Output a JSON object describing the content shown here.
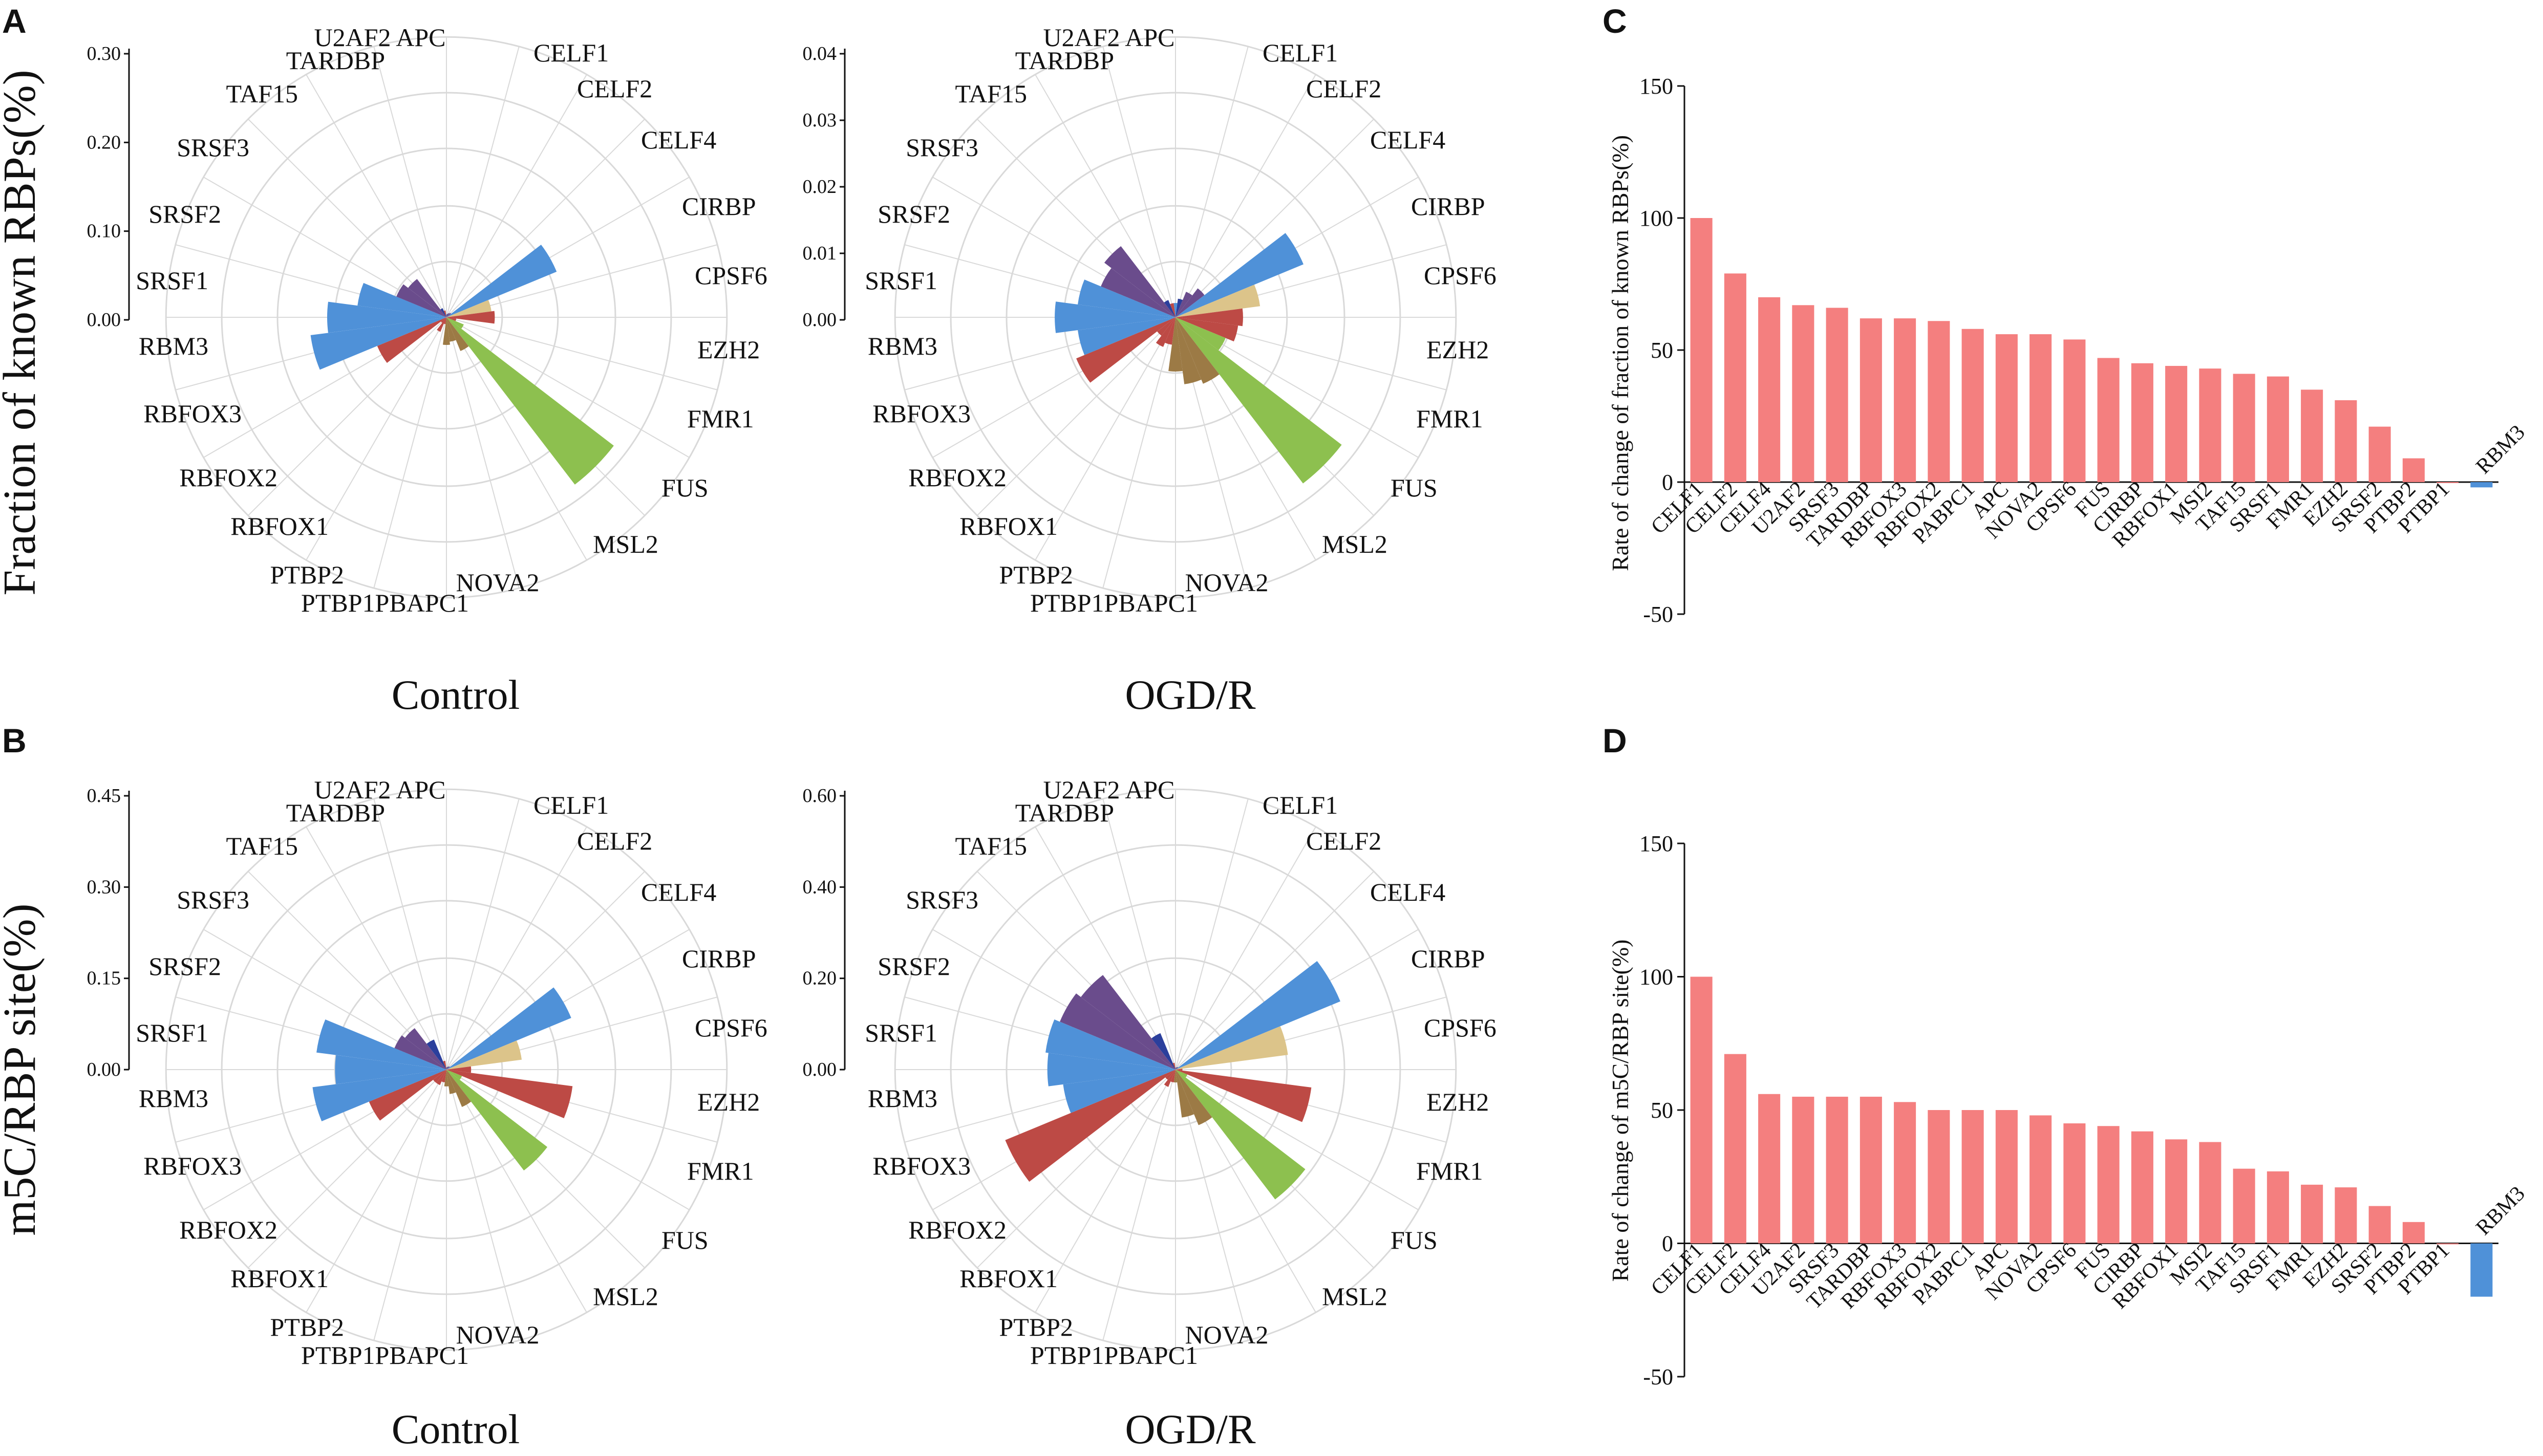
{
  "panel_labels": [
    "A",
    "B",
    "C",
    "D"
  ],
  "colors": {
    "purple": "#6a4c8c",
    "blue": "#4f91d8",
    "dark_blue": "#2b3f9c",
    "tan": "#dcc48a",
    "red": "#bd4a45",
    "brown": "#9c7a45",
    "green": "#8dc04f",
    "pink": "#f47f7f",
    "bar_blue": "#4f91d8",
    "grid": "#d9d9d9"
  },
  "chart_data": [
    {
      "type": "polar-bar",
      "panel": "A",
      "title": "Control",
      "ylabel": "Fraction of known RBPs(%)",
      "ylim": [
        0,
        0.3
      ],
      "ticks": [
        "0.00",
        "0.10",
        "0.20",
        "0.30"
      ],
      "categories": [
        "APC",
        "CELF1",
        "CELF2",
        "CELF4",
        "CIRBP",
        "CPSF6",
        "EZH2",
        "FMR1",
        "FUS",
        "MSL2",
        "NOVA2",
        "PBAPC1",
        "PTBP1",
        "PTBP2",
        "RBFOX1",
        "RBFOX2",
        "RBFOX3",
        "RBM3",
        "SRSF1",
        "SRSF2",
        "SRSF3",
        "TAF15",
        "TARDBP",
        "U2AF2"
      ],
      "values": [
        0.003,
        0.004,
        0.006,
        0.008,
        0.2,
        0.075,
        0.08,
        0.015,
        0.03,
        0.355,
        0.06,
        0.04,
        0.045,
        0.01,
        0.025,
        0.01,
        0.125,
        0.23,
        0.2,
        0.15,
        0.09,
        0.08,
        0.015,
        0.01
      ],
      "series_colors": [
        "blue",
        "dark_blue",
        "purple",
        "purple",
        "blue",
        "tan",
        "red",
        "red",
        "green",
        "green",
        "brown",
        "brown",
        "brown",
        "red",
        "red",
        "red",
        "red",
        "blue",
        "blue",
        "blue",
        "purple",
        "purple",
        "dark_blue",
        "red"
      ]
    },
    {
      "type": "polar-bar",
      "panel": "A",
      "title": "OGD/R",
      "ylim": [
        0,
        0.04
      ],
      "ticks": [
        "0.00",
        "0.01",
        "0.02",
        "0.03",
        "0.04"
      ],
      "categories": [
        "APC",
        "CELF1",
        "CELF2",
        "CELF4",
        "CIRBP",
        "CPSF6",
        "EZH2",
        "FMR1",
        "FUS",
        "MSL2",
        "NOVA2",
        "PBAPC1",
        "PTBP1",
        "PTBP2",
        "RBFOX1",
        "RBFOX2",
        "RBFOX3",
        "RBM3",
        "SRSF1",
        "SRSF2",
        "SRSF3",
        "TAF15",
        "TARDBP",
        "U2AF2"
      ],
      "values": [
        0.003,
        0.004,
        0.006,
        0.008,
        0.031,
        0.019,
        0.015,
        0.014,
        0.012,
        0.047,
        0.016,
        0.015,
        0.012,
        0.006,
        0.007,
        0.005,
        0.024,
        0.022,
        0.027,
        0.022,
        0.018,
        0.02,
        0.004,
        0.003
      ],
      "series_colors": [
        "blue",
        "dark_blue",
        "purple",
        "purple",
        "blue",
        "tan",
        "red",
        "red",
        "green",
        "green",
        "brown",
        "brown",
        "brown",
        "red",
        "red",
        "red",
        "red",
        "blue",
        "blue",
        "blue",
        "purple",
        "purple",
        "dark_blue",
        "red"
      ]
    },
    {
      "type": "polar-bar",
      "panel": "B",
      "title": "Control",
      "ylabel": "m5C/RBP site(%)",
      "ylim": [
        0,
        0.45
      ],
      "ticks": [
        "0.00",
        "0.15",
        "0.30",
        "0.45"
      ],
      "categories": [
        "APC",
        "CELF1",
        "CELF2",
        "CELF4",
        "CIRBP",
        "CPSF6",
        "EZH2",
        "FMR1",
        "FUS",
        "MSL2",
        "NOVA2",
        "PBAPC1",
        "PTBP1",
        "PTBP2",
        "RBFOX1",
        "RBFOX2",
        "RBFOX3",
        "RBM3",
        "SRSF1",
        "SRSF2",
        "SRSF3",
        "TAF15",
        "TARDBP",
        "U2AF2"
      ],
      "values": [
        0.003,
        0.004,
        0.006,
        0.008,
        0.34,
        0.19,
        0.06,
        0.32,
        0.04,
        0.32,
        0.1,
        0.06,
        0.04,
        0.03,
        0.04,
        0.04,
        0.21,
        0.34,
        0.28,
        0.33,
        0.14,
        0.13,
        0.08,
        0.02
      ],
      "series_colors": [
        "blue",
        "dark_blue",
        "purple",
        "purple",
        "blue",
        "tan",
        "red",
        "red",
        "green",
        "green",
        "brown",
        "brown",
        "brown",
        "red",
        "red",
        "red",
        "red",
        "blue",
        "blue",
        "blue",
        "purple",
        "purple",
        "dark_blue",
        "red"
      ]
    },
    {
      "type": "polar-bar",
      "panel": "B",
      "title": "OGD/R",
      "ylim": [
        0,
        0.6
      ],
      "ticks": [
        "0.00",
        "0.20",
        "0.40",
        "0.60"
      ],
      "categories": [
        "APC",
        "CELF1",
        "CELF2",
        "CELF4",
        "CIRBP",
        "CPSF6",
        "EZH2",
        "FMR1",
        "FUS",
        "MSL2",
        "NOVA2",
        "PBAPC1",
        "PTBP1",
        "PTBP2",
        "RBFOX1",
        "RBFOX2",
        "RBFOX3",
        "RBM3",
        "SRSF1",
        "SRSF2",
        "SRSF3",
        "TAF15",
        "TARDBP",
        "U2AF2"
      ],
      "values": [
        0.003,
        0.004,
        0.006,
        0.008,
        0.6,
        0.38,
        0.02,
        0.46,
        0.04,
        0.55,
        0.2,
        0.16,
        0.04,
        0.04,
        0.06,
        0.04,
        0.62,
        0.38,
        0.43,
        0.44,
        0.42,
        0.4,
        0.13,
        0.02
      ],
      "series_colors": [
        "blue",
        "dark_blue",
        "purple",
        "purple",
        "blue",
        "tan",
        "red",
        "red",
        "green",
        "green",
        "brown",
        "brown",
        "brown",
        "red",
        "red",
        "red",
        "red",
        "blue",
        "blue",
        "blue",
        "purple",
        "purple",
        "dark_blue",
        "red"
      ]
    },
    {
      "type": "bar",
      "panel": "C",
      "ylabel": "Rate of change of fraction of known RBPs(%)",
      "ylim": [
        -50,
        150
      ],
      "ticks": [
        "-50",
        "0",
        "50",
        "100",
        "150"
      ],
      "categories": [
        "CELF1",
        "CELF2",
        "CELF4",
        "U2AF2",
        "SRSF3",
        "TARDBP",
        "RBFOX3",
        "RBFOX2",
        "PABPC1",
        "APC",
        "NOVA2",
        "CPSF6",
        "FUS",
        "CIRBP",
        "RBFOX1",
        "MSI2",
        "TAF15",
        "SRSF1",
        "FMR1",
        "EZH2",
        "SRSF2",
        "PTBP2",
        "PTBP1",
        "RBM3"
      ],
      "values": [
        100,
        79,
        70,
        67,
        66,
        62,
        62,
        61,
        58,
        56,
        56,
        54,
        47,
        45,
        44,
        43,
        41,
        40,
        35,
        31,
        21,
        9,
        0,
        -2
      ]
    },
    {
      "type": "bar",
      "panel": "D",
      "ylabel": "Rate of change of m5C/RBP site(%)",
      "ylim": [
        -50,
        150
      ],
      "ticks": [
        "-50",
        "0",
        "50",
        "100",
        "150"
      ],
      "categories": [
        "CELF1",
        "CELF2",
        "CELF4",
        "U2AF2",
        "SRSF3",
        "TARDBP",
        "RBFOX3",
        "RBFOX2",
        "PABPC1",
        "APC",
        "NOVA2",
        "CPSF6",
        "FUS",
        "CIRBP",
        "RBFOX1",
        "MSI2",
        "TAF15",
        "SRSF1",
        "FMR1",
        "EZH2",
        "SRSF2",
        "PTBP2",
        "PTBP1",
        "RBM3"
      ],
      "values": [
        100,
        71,
        56,
        55,
        55,
        55,
        53,
        50,
        50,
        50,
        48,
        45,
        44,
        42,
        39,
        38,
        28,
        27,
        22,
        21,
        14,
        8,
        0,
        -20
      ]
    }
  ],
  "polar_label_text": [
    "U2AF2 APC",
    "CELF1",
    "CELF2",
    "CELF4",
    "CIRBP",
    "CPSF6",
    "EZH2",
    "FMR1",
    "FUS",
    "MSL2",
    "NOVA2",
    "PTBP1PBAPC1",
    "PTBP2",
    "RBFOX1",
    "RBFOX2",
    "RBFOX3",
    "RBM3",
    "SRSF1",
    "SRSF2",
    "SRSF3",
    "TAF15",
    "TARDBP"
  ]
}
